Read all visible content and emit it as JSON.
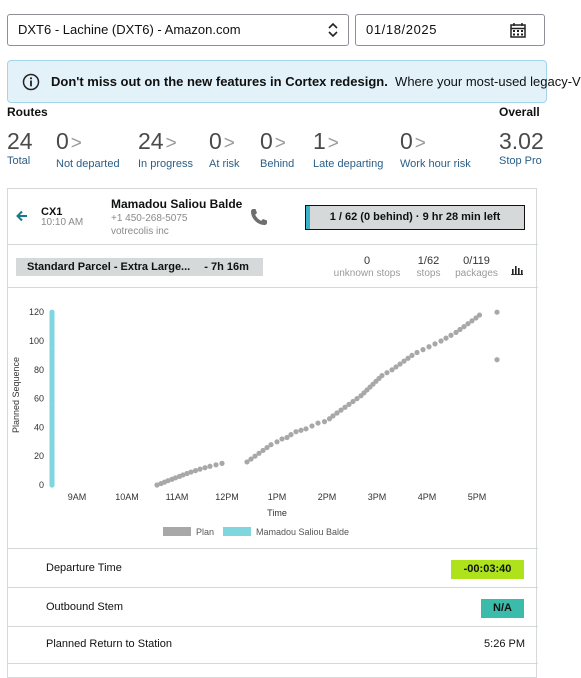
{
  "station": {
    "selected": "DXT6 - Lachine (DXT6) - Amazon.com"
  },
  "date": {
    "value": "01/18/2025"
  },
  "banner": {
    "bold": "Don't miss out on the new features in Cortex redesign.",
    "text": "Where your most-used legacy-V"
  },
  "summary": {
    "routes_label": "Routes",
    "overall_label": "Overall",
    "stats": [
      {
        "value": "24",
        "label": "Total",
        "arrow": ""
      },
      {
        "value": "0",
        "label": "Not departed",
        "arrow": ">"
      },
      {
        "value": "24",
        "label": "In progress",
        "arrow": ">"
      },
      {
        "value": "0",
        "label": "At risk",
        "arrow": ">"
      },
      {
        "value": "0",
        "label": "Behind",
        "arrow": ">"
      },
      {
        "value": "1",
        "label": "Late departing",
        "arrow": ">"
      },
      {
        "value": "0",
        "label": "Work hour risk",
        "arrow": ">"
      },
      {
        "value": "3.02",
        "label": "Stop Pro",
        "arrow": ""
      }
    ]
  },
  "route": {
    "id": "CX1",
    "time": "10:10 AM",
    "driver_name": "Mamadou Saliou Balde",
    "phone": "+1 450-268-5075",
    "company": "votrecolis inc",
    "progress_text": "1 / 62 (0 behind) · 9 hr 28 min left",
    "progress_fraction": 0.02
  },
  "task": {
    "name": "Standard Parcel - Extra Large...",
    "duration": "- 7h 16m",
    "metrics": [
      {
        "value": "0",
        "label": "unknown stops"
      },
      {
        "value": "1/62",
        "label": "stops"
      },
      {
        "value": "0/119",
        "label": "packages"
      }
    ]
  },
  "chart_data": {
    "type": "scatter",
    "ylabel": "Planned Sequence",
    "xlabel": "Time",
    "x_ticks": [
      "9AM",
      "10AM",
      "11AM",
      "12PM",
      "1PM",
      "2PM",
      "3PM",
      "4PM",
      "5PM"
    ],
    "y_ticks": [
      0,
      20,
      40,
      60,
      80,
      100,
      120
    ],
    "ylim": [
      0,
      125
    ],
    "xlim_hours": [
      8.5,
      17.5
    ],
    "legend": [
      "Plan",
      "Mamadou Saliou Balde"
    ],
    "legend_placement": "bottom",
    "colors": {
      "plan": "#a8a8a8",
      "driver": "#7fd6df"
    },
    "series": [
      {
        "name": "Plan",
        "points": [
          [
            10.6,
            0
          ],
          [
            10.68,
            1
          ],
          [
            10.75,
            2
          ],
          [
            10.82,
            3
          ],
          [
            10.9,
            4
          ],
          [
            10.97,
            5
          ],
          [
            11.05,
            6
          ],
          [
            11.12,
            7
          ],
          [
            11.2,
            8
          ],
          [
            11.28,
            9
          ],
          [
            11.37,
            10
          ],
          [
            11.46,
            11
          ],
          [
            11.56,
            12
          ],
          [
            11.66,
            13
          ],
          [
            11.78,
            14
          ],
          [
            11.9,
            15
          ],
          [
            12.4,
            16
          ],
          [
            12.48,
            18
          ],
          [
            12.56,
            20
          ],
          [
            12.64,
            22
          ],
          [
            12.72,
            24
          ],
          [
            12.8,
            26
          ],
          [
            12.88,
            28
          ],
          [
            13.0,
            30
          ],
          [
            13.1,
            32
          ],
          [
            13.2,
            33
          ],
          [
            13.28,
            35
          ],
          [
            13.38,
            37
          ],
          [
            13.48,
            38
          ],
          [
            13.58,
            39
          ],
          [
            13.7,
            41
          ],
          [
            13.82,
            43
          ],
          [
            13.95,
            44
          ],
          [
            14.05,
            46
          ],
          [
            14.12,
            48
          ],
          [
            14.2,
            50
          ],
          [
            14.28,
            52
          ],
          [
            14.36,
            54
          ],
          [
            14.44,
            56
          ],
          [
            14.52,
            58
          ],
          [
            14.6,
            60
          ],
          [
            14.68,
            62
          ],
          [
            14.74,
            64
          ],
          [
            14.8,
            66
          ],
          [
            14.86,
            68
          ],
          [
            14.92,
            70
          ],
          [
            14.98,
            72
          ],
          [
            15.04,
            74
          ],
          [
            15.1,
            76
          ],
          [
            15.2,
            78
          ],
          [
            15.3,
            80
          ],
          [
            15.38,
            82
          ],
          [
            15.46,
            84
          ],
          [
            15.54,
            86
          ],
          [
            15.62,
            88
          ],
          [
            15.7,
            90
          ],
          [
            15.8,
            92
          ],
          [
            15.92,
            94
          ],
          [
            16.04,
            96
          ],
          [
            16.16,
            98
          ],
          [
            16.28,
            100
          ],
          [
            16.38,
            102
          ],
          [
            16.48,
            104
          ],
          [
            16.58,
            106
          ],
          [
            16.66,
            108
          ],
          [
            16.74,
            110
          ],
          [
            16.82,
            112
          ],
          [
            16.9,
            114
          ],
          [
            16.98,
            116
          ],
          [
            17.05,
            118
          ],
          [
            17.4,
            120
          ],
          [
            17.4,
            87
          ]
        ]
      },
      {
        "name": "Mamadou Saliou Balde",
        "x": 8.5,
        "y_range": [
          0,
          120
        ]
      }
    ]
  },
  "details": {
    "departure": {
      "label": "Departure Time",
      "value": "-00:03:40",
      "color": "#aee31c"
    },
    "stem": {
      "label": "Outbound Stem",
      "value": "N/A",
      "color": "#3bbcab"
    },
    "return": {
      "label": "Planned Return to Station",
      "value": "5:26 PM"
    }
  }
}
